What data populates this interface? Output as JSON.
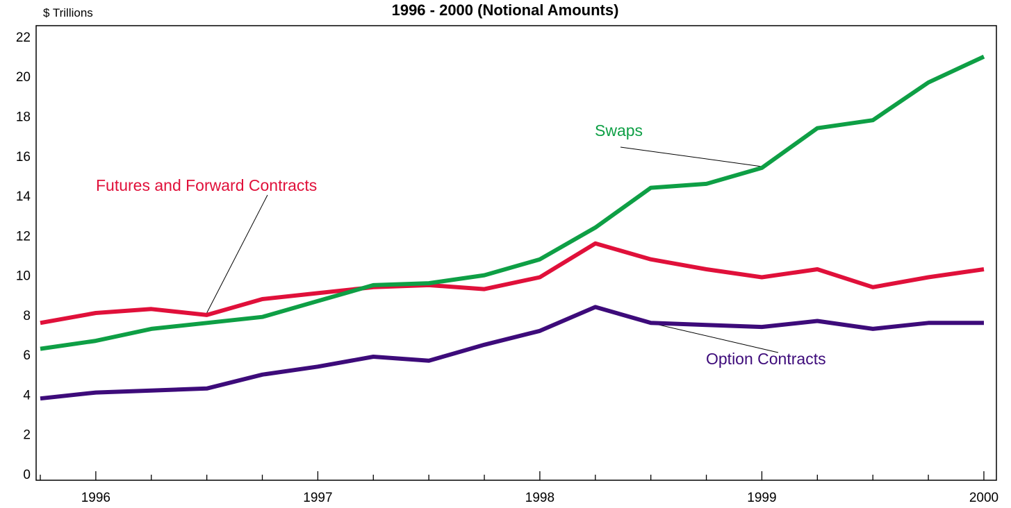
{
  "chart_data": {
    "type": "line",
    "title": "1996 - 2000 (Notional Amounts)",
    "ylabel": "$ Trillions",
    "xlabel": "",
    "ylim": [
      0,
      22
    ],
    "yticks": [
      0,
      2,
      4,
      6,
      8,
      10,
      12,
      14,
      16,
      18,
      20,
      22
    ],
    "xticklabels": [
      "1996",
      "1997",
      "1998",
      "1999",
      "2000"
    ],
    "x": [
      "1995 Q4",
      "1996 Q1",
      "1996 Q2",
      "1996 Q3",
      "1996 Q4",
      "1997 Q1",
      "1997 Q2",
      "1997 Q3",
      "1997 Q4",
      "1998 Q1",
      "1998 Q2",
      "1998 Q3",
      "1998 Q4",
      "1999 Q1",
      "1999 Q2",
      "1999 Q3",
      "1999 Q4",
      "2000 Q1"
    ],
    "grid": false,
    "legend": "inline annotations",
    "series": [
      {
        "name": "Futures and Forward Contracts",
        "color": "#e0103a",
        "values": [
          7.6,
          8.1,
          8.3,
          8.0,
          8.8,
          9.1,
          9.4,
          9.5,
          9.3,
          9.9,
          11.6,
          10.8,
          10.3,
          9.9,
          10.3,
          9.4,
          9.9,
          10.3
        ]
      },
      {
        "name": "Swaps",
        "color": "#0e9f45",
        "values": [
          6.3,
          6.7,
          7.3,
          7.6,
          7.9,
          8.7,
          9.5,
          9.6,
          10.0,
          10.8,
          12.4,
          14.4,
          14.6,
          15.4,
          17.4,
          17.8,
          19.7,
          21.0
        ]
      },
      {
        "name": "Option Contracts",
        "color": "#3d0b7a",
        "values": [
          3.8,
          4.1,
          4.2,
          4.3,
          5.0,
          5.4,
          5.9,
          5.7,
          6.5,
          7.2,
          8.4,
          7.6,
          7.5,
          7.4,
          7.7,
          7.3,
          7.6,
          7.6
        ]
      }
    ]
  }
}
